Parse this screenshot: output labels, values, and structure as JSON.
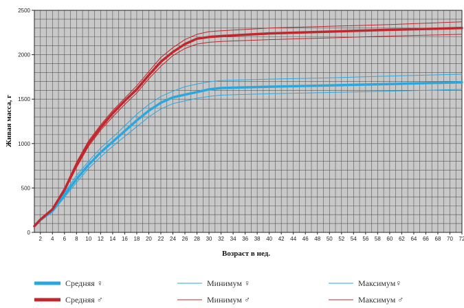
{
  "chart_data": {
    "type": "line",
    "xlabel": "Возраст в нед.",
    "ylabel": "Живая масса, г",
    "xlim": [
      1,
      72
    ],
    "ylim": [
      0,
      2500
    ],
    "x_ticks": [
      2,
      4,
      6,
      8,
      10,
      12,
      14,
      16,
      18,
      20,
      22,
      24,
      26,
      28,
      30,
      32,
      34,
      36,
      38,
      40,
      42,
      44,
      46,
      48,
      50,
      52,
      54,
      56,
      58,
      60,
      62,
      64,
      66,
      68,
      70,
      72
    ],
    "y_ticks": [
      0,
      500,
      1000,
      1500,
      2000,
      2500
    ],
    "grid": true,
    "colors": {
      "female": "#29a8e0",
      "male": "#c1272d",
      "plot_bg": "#c8c8c8",
      "grid": "#555555"
    },
    "x": [
      1,
      2,
      4,
      6,
      8,
      10,
      12,
      14,
      16,
      18,
      20,
      22,
      24,
      26,
      28,
      30,
      32,
      40,
      50,
      60,
      72
    ],
    "series": [
      {
        "name": "Средняя ♀",
        "sex": "female",
        "kind": "mean",
        "values": [
          70,
          140,
          240,
          420,
          600,
          760,
          900,
          1020,
          1140,
          1260,
          1370,
          1460,
          1520,
          1550,
          1580,
          1610,
          1625,
          1640,
          1655,
          1670,
          1690
        ]
      },
      {
        "name": "Минимум ♀",
        "sex": "female",
        "kind": "min",
        "values": [
          65,
          130,
          225,
          395,
          560,
          720,
          850,
          970,
          1080,
          1190,
          1300,
          1390,
          1450,
          1480,
          1510,
          1530,
          1545,
          1560,
          1575,
          1590,
          1610
        ]
      },
      {
        "name": "Максимум ♀",
        "sex": "female",
        "kind": "max",
        "values": [
          75,
          150,
          255,
          450,
          640,
          800,
          950,
          1070,
          1200,
          1330,
          1440,
          1530,
          1590,
          1640,
          1670,
          1695,
          1710,
          1725,
          1740,
          1760,
          1780
        ]
      },
      {
        "name": "Средняя ♂",
        "sex": "male",
        "kind": "mean",
        "values": [
          70,
          145,
          260,
          480,
          760,
          1000,
          1180,
          1340,
          1480,
          1610,
          1770,
          1920,
          2030,
          2120,
          2180,
          2200,
          2210,
          2240,
          2260,
          2280,
          2300
        ]
      },
      {
        "name": "Минимум ♂",
        "sex": "male",
        "kind": "min",
        "values": [
          65,
          140,
          250,
          460,
          730,
          970,
          1150,
          1300,
          1440,
          1570,
          1730,
          1870,
          1990,
          2070,
          2120,
          2140,
          2150,
          2170,
          2190,
          2210,
          2230
        ]
      },
      {
        "name": "Максимум ♂",
        "sex": "male",
        "kind": "max",
        "values": [
          75,
          150,
          270,
          500,
          790,
          1030,
          1210,
          1370,
          1510,
          1650,
          1810,
          1970,
          2080,
          2170,
          2230,
          2260,
          2270,
          2300,
          2320,
          2340,
          2370
        ]
      }
    ]
  },
  "legend": [
    {
      "label": "Средняя ♀",
      "series": 0
    },
    {
      "label": "Минимум ♀",
      "series": 1
    },
    {
      "label": "Максимум♀",
      "series": 2
    },
    {
      "label": "Средняя ♂",
      "series": 3
    },
    {
      "label": "Минимум ♂",
      "series": 4
    },
    {
      "label": "Максимум ♂",
      "series": 5
    }
  ]
}
